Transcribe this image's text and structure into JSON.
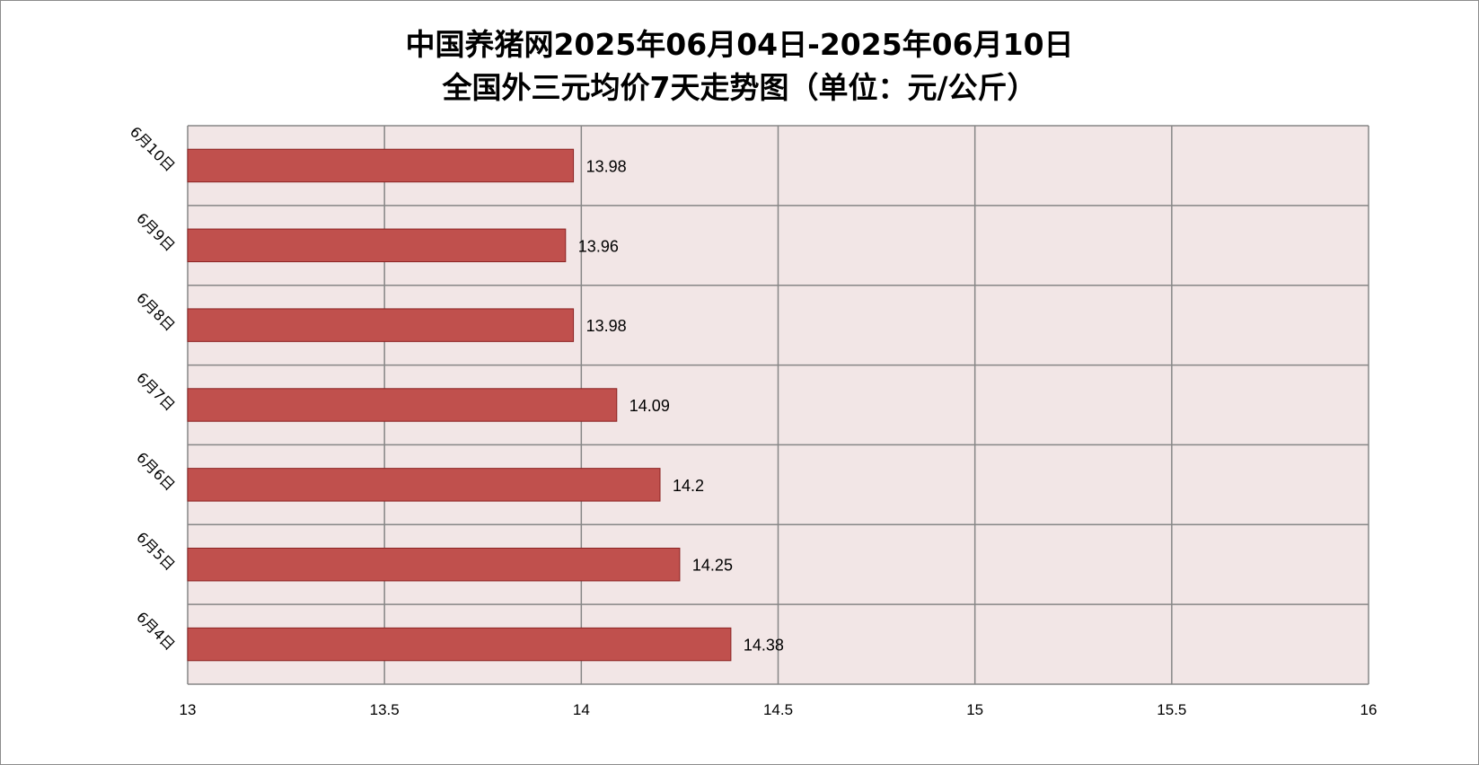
{
  "chart_data": {
    "type": "bar",
    "orientation": "horizontal",
    "title_line1": "中国养猪网2025年06月04日-2025年06月10日",
    "title_line2": "全国外三元均价7天走势图（单位：元/公斤）",
    "categories": [
      "6月10日",
      "6月9日",
      "6月8日",
      "6月7日",
      "6月6日",
      "6月5日",
      "6月4日"
    ],
    "values": [
      13.98,
      13.96,
      13.98,
      14.09,
      14.2,
      14.25,
      14.38
    ],
    "value_labels": [
      "13.98",
      "13.96",
      "13.98",
      "14.09",
      "14.2",
      "14.25",
      "14.38"
    ],
    "xlim": [
      13,
      16
    ],
    "x_ticks": [
      13,
      13.5,
      14,
      14.5,
      15,
      15.5,
      16
    ],
    "x_tick_labels": [
      "13",
      "13.5",
      "14",
      "14.5",
      "15",
      "15.5",
      "16"
    ],
    "grid": true,
    "legend": "none",
    "colors": {
      "bar_fill": "#c0504d",
      "bar_stroke": "#8b2323",
      "plot_bg": "#f2e6e6",
      "grid": "#868686"
    }
  }
}
